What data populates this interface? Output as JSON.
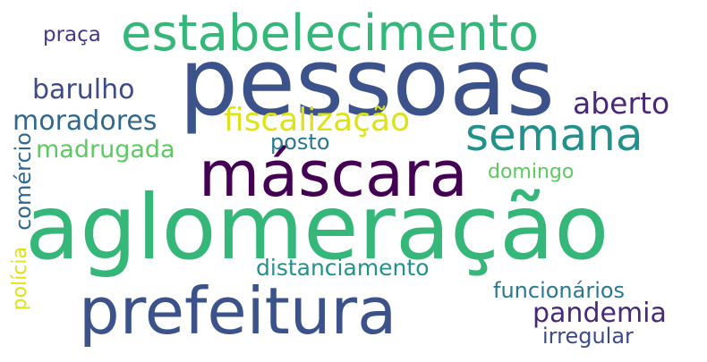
{
  "words": [
    {
      "text": "aglomeração",
      "color": "#35b779"
    },
    {
      "text": "pessoas",
      "color": "#3b528b"
    },
    {
      "text": "estabelecimento",
      "color": "#35b779"
    },
    {
      "text": "máscara",
      "color": "#440154"
    },
    {
      "text": "prefeitura",
      "color": "#3b528b"
    },
    {
      "text": "semana",
      "color": "#21918c"
    },
    {
      "text": "fiscalização",
      "color": "#dde318"
    },
    {
      "text": "aberto",
      "color": "#482878"
    },
    {
      "text": "barulho",
      "color": "#3e4a89"
    },
    {
      "text": "moradores",
      "color": "#31688e"
    },
    {
      "text": "madrugada",
      "color": "#5ec962"
    },
    {
      "text": "posto",
      "color": "#2a788e"
    },
    {
      "text": "domingo",
      "color": "#5ec962"
    },
    {
      "text": "praça",
      "color": "#443983"
    },
    {
      "text": "comércio",
      "color": "#31688e"
    },
    {
      "text": "polícia",
      "color": "#dde318"
    },
    {
      "text": "distanciamento",
      "color": "#21918c"
    },
    {
      "text": "funcionários",
      "color": "#2a788e"
    },
    {
      "text": "pandemia",
      "color": "#482878"
    },
    {
      "text": "irregular",
      "color": "#3e4a89"
    }
  ]
}
